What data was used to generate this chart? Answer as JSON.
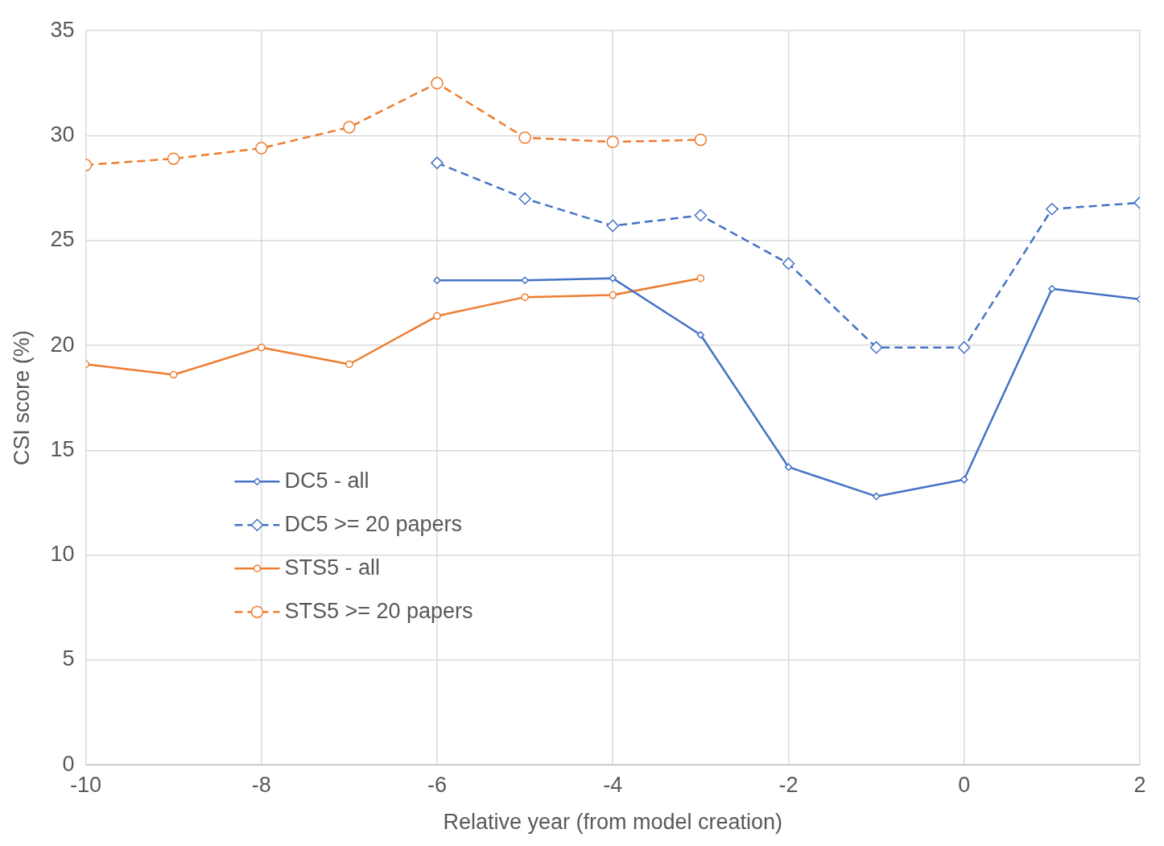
{
  "chart_data": {
    "type": "line",
    "xlabel": "Relative year (from model creation)",
    "ylabel": "CSI score (%)",
    "xlim": [
      -10,
      2
    ],
    "xticks": [
      -10,
      -8,
      -6,
      -4,
      -2,
      0,
      2
    ],
    "ylim": [
      0,
      35
    ],
    "yticks": [
      0,
      5,
      10,
      15,
      20,
      25,
      30,
      35
    ],
    "grid": true,
    "legend": "bottom left",
    "series": [
      {
        "name": "DC5 - all",
        "color": "#4472c4",
        "marker": "diamond",
        "line_style": "solid",
        "x": [
          -6,
          -5,
          -4,
          -3,
          -2,
          -1,
          0,
          1,
          2
        ],
        "values": [
          23.1,
          23.1,
          23.2,
          20.5,
          14.2,
          12.8,
          13.6,
          22.7,
          22.2
        ]
      },
      {
        "name": "DC5 >= 20 papers",
        "color": "#4472c4",
        "marker": "diamond",
        "line_style": "dashed",
        "x": [
          -6,
          -5,
          -4,
          -3,
          -2,
          -1,
          0,
          1,
          2
        ],
        "values": [
          28.7,
          27.0,
          25.7,
          26.2,
          23.9,
          19.9,
          19.9,
          26.5,
          26.8
        ]
      },
      {
        "name": "STS5 - all",
        "color": "#ed7d31",
        "marker": "circle",
        "line_style": "solid",
        "x": [
          -10,
          -9,
          -8,
          -7,
          -6,
          -5,
          -4,
          -3
        ],
        "values": [
          19.1,
          18.6,
          19.9,
          19.1,
          21.4,
          22.3,
          22.4,
          23.2
        ]
      },
      {
        "name": "STS5 >= 20 papers",
        "color": "#ed7d31",
        "marker": "circle",
        "line_style": "dashed",
        "x": [
          -10,
          -9,
          -8,
          -7,
          -6,
          -5,
          -4,
          -3
        ],
        "values": [
          28.6,
          28.9,
          29.4,
          30.4,
          32.5,
          29.9,
          29.7,
          29.8
        ]
      }
    ]
  }
}
